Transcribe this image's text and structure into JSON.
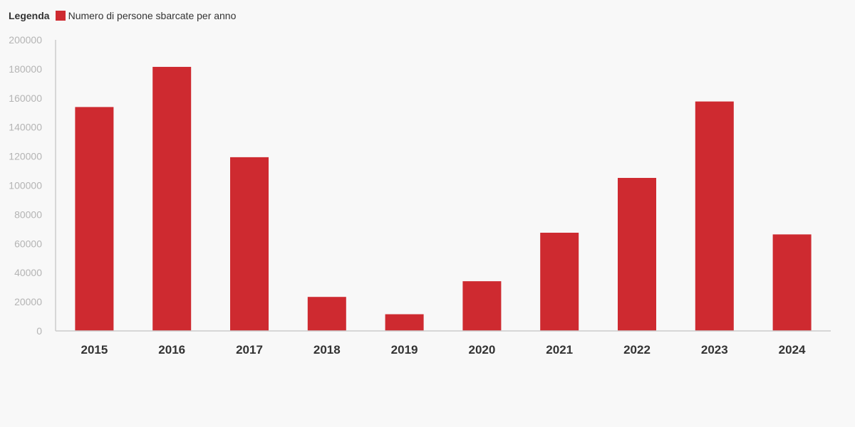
{
  "legend": {
    "title": "Legenda",
    "label": "Numero di persone sbarcate per anno"
  },
  "colors": {
    "bar": "#ce2a30",
    "axis": "#cccccc",
    "background": "#f8f8f8"
  },
  "chart_data": {
    "type": "bar",
    "categories": [
      "2015",
      "2016",
      "2017",
      "2018",
      "2019",
      "2020",
      "2021",
      "2022",
      "2023",
      "2024"
    ],
    "series": [
      {
        "name": "Numero di persone sbarcate per anno",
        "values": [
          153842,
          181436,
          119369,
          23370,
          11471,
          34154,
          67477,
          105140,
          157652,
          66317
        ]
      }
    ],
    "ylim": [
      0,
      200000
    ],
    "yticks": [
      "0",
      "20000",
      "40000",
      "60000",
      "80000",
      "100000",
      "120000",
      "140000",
      "160000",
      "180000",
      "200000"
    ],
    "grid": false,
    "legend_position": "top-left",
    "xlabel": "",
    "ylabel": ""
  }
}
